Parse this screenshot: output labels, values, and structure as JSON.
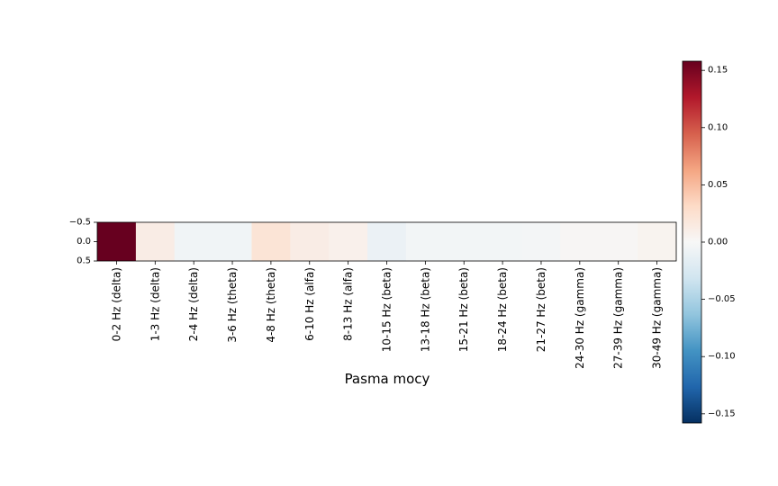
{
  "chart_data": {
    "type": "heatmap",
    "title": "",
    "xlabel": "Pasma mocy",
    "ylabel": "",
    "y_ticks": [
      "-0.5",
      "0.0",
      "0.5"
    ],
    "categories": [
      "0-2 Hz (delta)",
      "1-3 Hz (delta)",
      "2-4 Hz (delta)",
      "3-6 Hz (theta)",
      "4-8 Hz (theta)",
      "6-10 Hz (alfa)",
      "8-13 Hz (alfa)",
      "10-15 Hz (beta)",
      "13-18 Hz (beta)",
      "15-21 Hz (beta)",
      "18-24 Hz (beta)",
      "21-27 Hz (beta)",
      "24-30 Hz (gamma)",
      "27-39 Hz (gamma)",
      "30-49 Hz (gamma)"
    ],
    "values": [
      0.158,
      0.012,
      -0.006,
      -0.006,
      0.022,
      0.012,
      0.008,
      -0.01,
      -0.004,
      -0.004,
      -0.004,
      -0.003,
      0.002,
      0.002,
      0.005
    ],
    "colormap": "RdBu_r",
    "vmin": -0.158,
    "vmax": 0.158,
    "colorbar_ticks": [
      "0.15",
      "0.10",
      "0.05",
      "0.00",
      "−0.05",
      "−0.10",
      "−0.15"
    ],
    "colorbar_tick_values": [
      0.15,
      0.1,
      0.05,
      0.0,
      -0.05,
      -0.1,
      -0.15
    ]
  }
}
